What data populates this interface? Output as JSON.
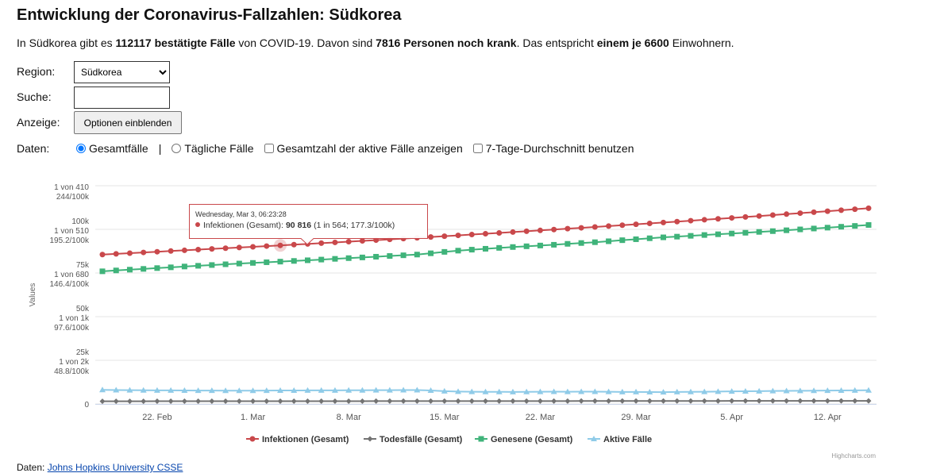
{
  "header": {
    "title": "Entwicklung der Coronavirus-Fallzahlen: Südkorea"
  },
  "summary": [
    "In Südkorea gibt es",
    "112117 bestätigte Fälle",
    "von COVID-19. Davon sind",
    "7816 Personen noch krank",
    ". Das entspricht",
    "einem je 6600",
    "Einwohnern."
  ],
  "controls": {
    "region_label": "Region:",
    "region_value": "Südkorea",
    "search_label": "Suche:",
    "display_label": "Anzeige:",
    "display_button": "Optionen einblenden",
    "data_label": "Daten:",
    "option_total": "Gesamtfälle",
    "separator": "|",
    "option_daily": "Tägliche Fälle",
    "option_active": "Gesamtzahl der aktive Fälle anzeigen",
    "option_avg": "7-Tage-Durchschnitt benutzen"
  },
  "chart_data": {
    "type": "line",
    "y_label": "Values",
    "grid": true,
    "legend": "bottom",
    "credit": "Highcharts.com",
    "categories": [
      null,
      null,
      null,
      null,
      "22. Feb",
      null,
      null,
      null,
      null,
      null,
      null,
      "1. Mar",
      null,
      null,
      null,
      null,
      null,
      null,
      "8. Mar",
      null,
      null,
      null,
      null,
      null,
      null,
      "15. Mar",
      null,
      null,
      null,
      null,
      null,
      null,
      "22. Mar",
      null,
      null,
      null,
      null,
      null,
      null,
      "29. Mar",
      null,
      null,
      null,
      null,
      null,
      null,
      "5. Apr",
      null,
      null,
      null,
      null,
      null,
      null,
      "12. Apr",
      null,
      null,
      null
    ],
    "ylim": [
      0,
      125000
    ],
    "yticks": [
      0,
      {
        "value": 25000,
        "label": "25k\n1 von 2k\n48.8/100k"
      },
      {
        "value": 50000,
        "label": "50k\n1 von 1k\n97.6/100k"
      },
      {
        "value": 75000,
        "label": "75k\n1 von 680\n146.4/100k"
      },
      {
        "value": 100000,
        "label": "100k\n1 von 510\n195.2/100k"
      },
      {
        "value": 125000,
        "label": "1 von 410\n244/100k"
      }
    ],
    "series": [
      {
        "name": "Infektionen (Gesamt)",
        "color": "#c9484b",
        "marker": "circle",
        "values": [
          85567,
          85971,
          86375,
          86779,
          87183,
          87587,
          87991,
          88395,
          88799,
          89203,
          89607,
          90011,
          90415,
          90816,
          91236,
          91660,
          92087,
          92518,
          92952,
          93390,
          93831,
          94276,
          94724,
          95176,
          95632,
          96091,
          96554,
          97020,
          97490,
          97963,
          98440,
          98921,
          99405,
          99893,
          100384,
          100879,
          101377,
          101879,
          102385,
          102894,
          103407,
          103923,
          104443,
          104966,
          105493,
          106024,
          106558,
          107096,
          107637,
          108182,
          108730,
          109282,
          109838,
          110397,
          110960,
          111526,
          112117
        ]
      },
      {
        "name": "Todesfälle (Gesamt)",
        "color": "#737373",
        "marker": "diamond",
        "values": [
          1550,
          1553,
          1557,
          1562,
          1566,
          1570,
          1573,
          1576,
          1580,
          1584,
          1587,
          1590,
          1594,
          1597,
          1600,
          1603,
          1606,
          1609,
          1612,
          1617,
          1622,
          1625,
          1628,
          1632,
          1637,
          1641,
          1646,
          1649,
          1652,
          1655,
          1657,
          1660,
          1665,
          1671,
          1676,
          1683,
          1688,
          1692,
          1696,
          1700,
          1707,
          1712,
          1717,
          1721,
          1726,
          1730,
          1735,
          1738,
          1742,
          1747,
          1752,
          1755,
          1758,
          1764,
          1768,
          1773,
          1784
        ]
      },
      {
        "name": "Genesene (Gesamt)",
        "color": "#3fb37a",
        "marker": "square",
        "values": [
          75977,
          76468,
          76918,
          77357,
          77817,
          78257,
          78718,
          79139,
          79569,
          79999,
          80420,
          80781,
          81161,
          81519,
          81916,
          82297,
          82691,
          83109,
          83520,
          83923,
          84329,
          84751,
          85146,
          85564,
          86295,
          87100,
          87808,
          88371,
          88888,
          89388,
          89883,
          90311,
          90740,
          91172,
          91708,
          92176,
          92639,
          93187,
          93789,
          94344,
          94900,
          95431,
          95826,
          96295,
          96767,
          97194,
          97623,
          98058,
          98545,
          98985,
          99478,
          99977,
          100480,
          100983,
          101492,
          101973,
          102517
        ]
      },
      {
        "name": "Aktive Fälle",
        "color": "#8fcbe8",
        "marker": "triangle",
        "values": [
          8040,
          7950,
          7900,
          7860,
          7800,
          7760,
          7700,
          7680,
          7650,
          7620,
          7600,
          7640,
          7660,
          7700,
          7720,
          7760,
          7790,
          7800,
          7820,
          7850,
          7880,
          7900,
          7950,
          7980,
          7700,
          7350,
          7100,
          7000,
          6950,
          6920,
          6900,
          6950,
          7000,
          7050,
          7000,
          7020,
          7050,
          7000,
          6900,
          6850,
          6800,
          6780,
          6900,
          6950,
          7000,
          7100,
          7200,
          7300,
          7350,
          7450,
          7500,
          7550,
          7600,
          7650,
          7700,
          7780,
          7816
        ]
      }
    ],
    "tooltip": {
      "header": "Wednesday, Mar 3, 06:23:28",
      "label": "Infektionen (Gesamt):",
      "value": "90 816",
      "detail": "(1 in 564; 177.3/100k)"
    }
  },
  "footer": {
    "label": "Daten:",
    "link": "Johns Hopkins University CSSE"
  }
}
